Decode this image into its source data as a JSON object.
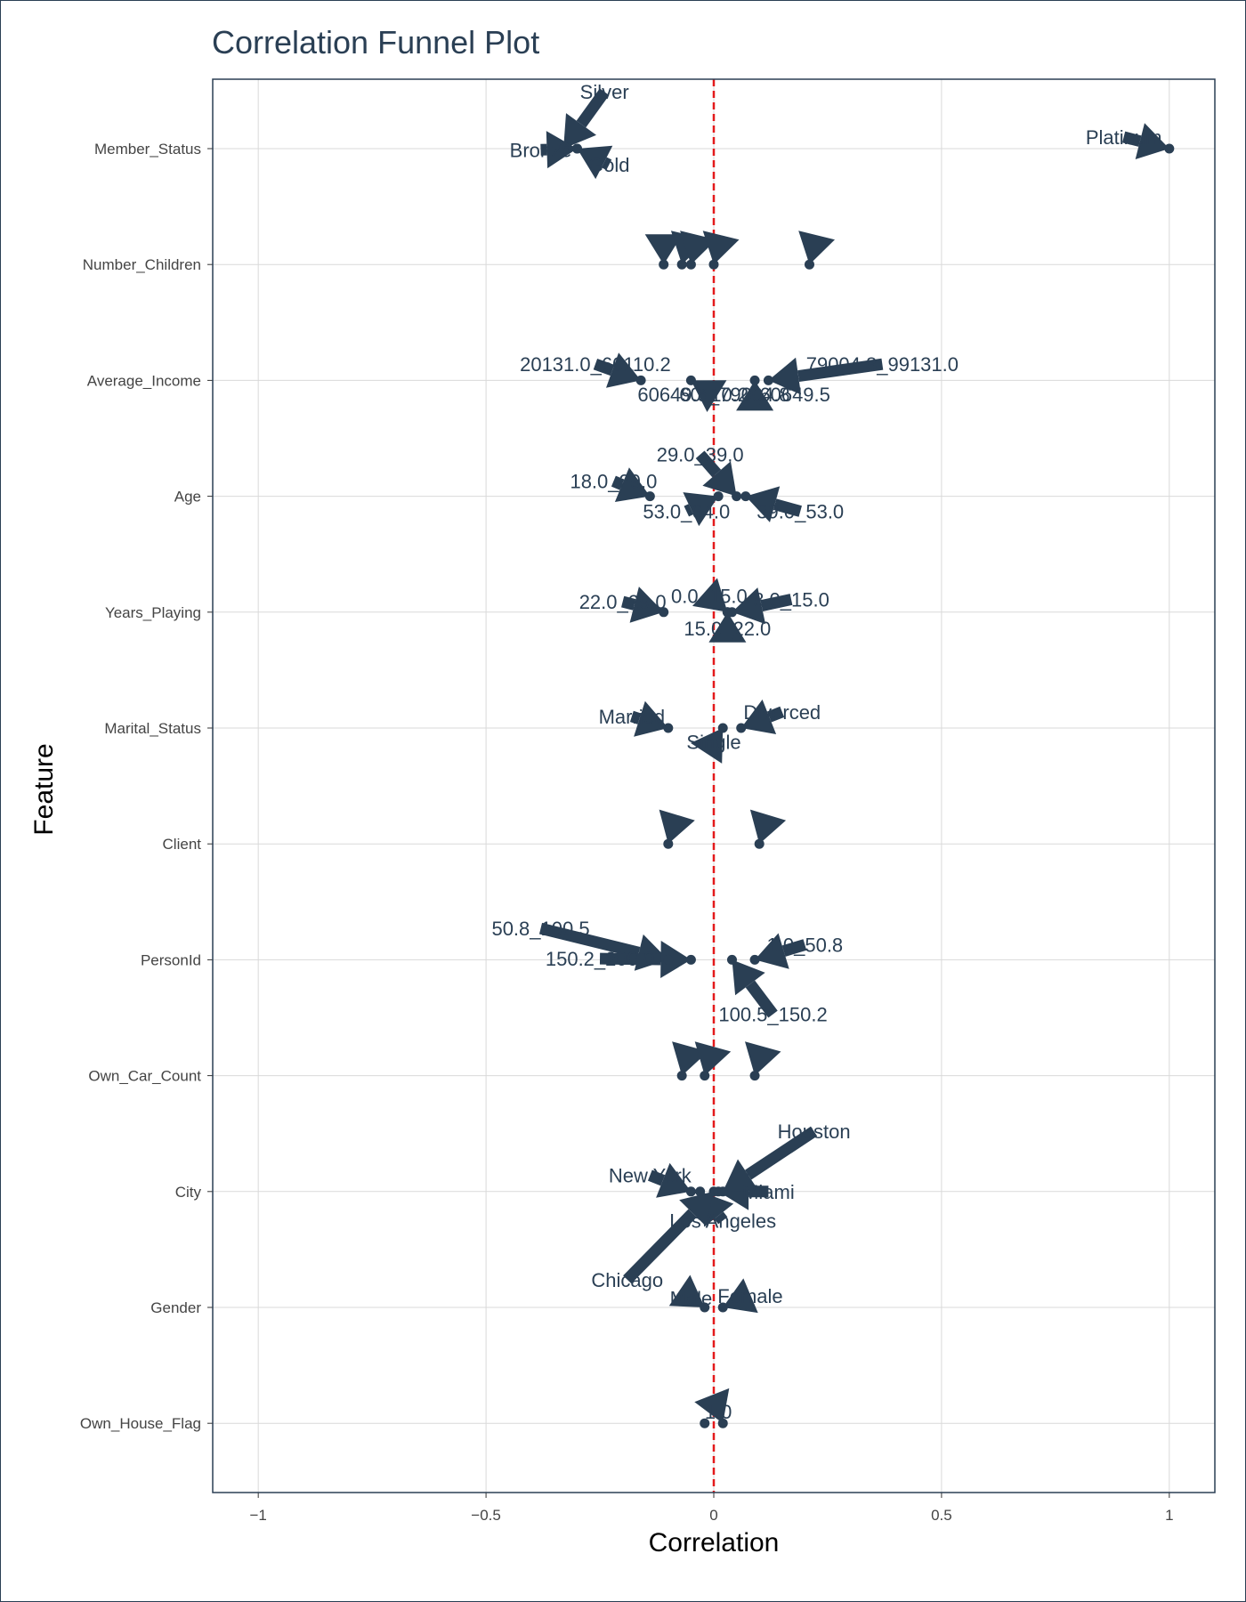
{
  "chart_data": {
    "type": "scatter",
    "title": "Correlation Funnel Plot",
    "xlabel": "Correlation",
    "ylabel": "Feature",
    "xlim": [
      -1.1,
      1.1
    ],
    "x_ticks": [
      -1,
      -0.5,
      0,
      0.5,
      1
    ],
    "x_tick_labels": [
      "−1",
      "−0.5",
      "0",
      "0.5",
      "1"
    ],
    "reference_line": {
      "x": 0,
      "style": "dashed",
      "color": "#e31a1c"
    },
    "grid": true,
    "legend": "none",
    "categories": [
      "Member_Status",
      "Number_Children",
      "Average_Income",
      "Age",
      "Years_Playing",
      "Marital_Status",
      "Client",
      "PersonId",
      "Own_Car_Count",
      "City",
      "Gender",
      "Own_House_Flag"
    ],
    "points": [
      {
        "feature": "Member_Status",
        "label": "Silver",
        "x": -0.33
      },
      {
        "feature": "Member_Status",
        "label": "Bronze",
        "x": -0.3
      },
      {
        "feature": "Member_Status",
        "label": "Gold",
        "x": -0.3
      },
      {
        "feature": "Member_Status",
        "label": "Platinum",
        "x": 1.0
      },
      {
        "feature": "Number_Children",
        "label": "",
        "x": -0.11
      },
      {
        "feature": "Number_Children",
        "label": "",
        "x": -0.07
      },
      {
        "feature": "Number_Children",
        "label": "",
        "x": -0.05
      },
      {
        "feature": "Number_Children",
        "label": "",
        "x": 0.0
      },
      {
        "feature": "Number_Children",
        "label": "",
        "x": 0.21
      },
      {
        "feature": "Average_Income",
        "label": "20131.0_60110.2",
        "x": -0.16
      },
      {
        "feature": "Average_Income",
        "label": "60649.5_79004.8",
        "x": -0.05
      },
      {
        "feature": "Average_Income",
        "label": "60110.2_60649.5",
        "x": 0.09
      },
      {
        "feature": "Average_Income",
        "label": "79004.8_99131.0",
        "x": 0.12
      },
      {
        "feature": "Age",
        "label": "18.0_29.0",
        "x": -0.14
      },
      {
        "feature": "Age",
        "label": "53.0_64.0",
        "x": 0.01
      },
      {
        "feature": "Age",
        "label": "29.0_39.0",
        "x": 0.05
      },
      {
        "feature": "Age",
        "label": "39.0_53.0",
        "x": 0.07
      },
      {
        "feature": "Years_Playing",
        "label": "22.0_29.0",
        "x": -0.11
      },
      {
        "feature": "Years_Playing",
        "label": "0.0_15.0",
        "x": 0.03
      },
      {
        "feature": "Years_Playing",
        "label": "15.0_22.0",
        "x": 0.03
      },
      {
        "feature": "Years_Playing",
        "label": "8.0_15.0",
        "x": 0.04
      },
      {
        "feature": "Marital_Status",
        "label": "Married",
        "x": -0.1
      },
      {
        "feature": "Marital_Status",
        "label": "Single",
        "x": 0.02
      },
      {
        "feature": "Marital_Status",
        "label": "Divorced",
        "x": 0.06
      },
      {
        "feature": "Client",
        "label": "",
        "x": -0.1
      },
      {
        "feature": "Client",
        "label": "",
        "x": 0.1
      },
      {
        "feature": "PersonId",
        "label": "50.8_100.5",
        "x": -0.1
      },
      {
        "feature": "PersonId",
        "label": "150.2_200.0",
        "x": -0.05
      },
      {
        "feature": "PersonId",
        "label": "100.5_150.2",
        "x": 0.04
      },
      {
        "feature": "PersonId",
        "label": "1.0_50.8",
        "x": 0.09
      },
      {
        "feature": "Own_Car_Count",
        "label": "",
        "x": -0.07
      },
      {
        "feature": "Own_Car_Count",
        "label": "",
        "x": -0.02
      },
      {
        "feature": "Own_Car_Count",
        "label": "",
        "x": 0.09
      },
      {
        "feature": "City",
        "label": "New York",
        "x": -0.05
      },
      {
        "feature": "City",
        "label": "Los Angeles",
        "x": -0.03
      },
      {
        "feature": "City",
        "label": "Chicago",
        "x": 0.0
      },
      {
        "feature": "City",
        "label": "Miami",
        "x": 0.01
      },
      {
        "feature": "City",
        "label": "Houston",
        "x": 0.02
      },
      {
        "feature": "Gender",
        "label": "Male",
        "x": -0.02
      },
      {
        "feature": "Gender",
        "label": "Female",
        "x": 0.02
      },
      {
        "feature": "Own_House_Flag",
        "label": "",
        "x": -0.02
      },
      {
        "feature": "Own_House_Flag",
        "label": "1.0",
        "x": 0.02
      }
    ],
    "annotations": [
      {
        "text": "Silver",
        "point": 0,
        "tx": -0.24,
        "ty": -0.49
      },
      {
        "text": "Bronze",
        "point": 1,
        "tx": -0.38,
        "ty": 0.01
      },
      {
        "text": "Gold",
        "point": 2,
        "tx": -0.23,
        "ty": 0.14
      },
      {
        "text": "Platinum",
        "point": 3,
        "tx": 0.9,
        "ty": -0.1
      },
      {
        "text": "",
        "point": 4,
        "tx": -0.11,
        "ty": -0.16
      },
      {
        "text": "",
        "point": 5,
        "tx": -0.06,
        "ty": -0.16
      },
      {
        "text": "",
        "point": 6,
        "tx": -0.04,
        "ty": -0.16
      },
      {
        "text": "",
        "point": 7,
        "tx": 0.01,
        "ty": -0.16
      },
      {
        "text": "",
        "point": 8,
        "tx": 0.22,
        "ty": -0.16
      },
      {
        "text": "20131.0_60110.2",
        "point": 9,
        "tx": -0.26,
        "ty": -0.14
      },
      {
        "text": "60649.5_79004.8",
        "point": 10,
        "tx": 0.0,
        "ty": 0.12
      },
      {
        "text": "60110.2_60649.5",
        "point": 11,
        "tx": 0.09,
        "ty": 0.12
      },
      {
        "text": "79004.8_99131.0",
        "point": 12,
        "tx": 0.37,
        "ty": -0.14
      },
      {
        "text": "18.0_29.0",
        "point": 13,
        "tx": -0.22,
        "ty": -0.13
      },
      {
        "text": "53.0_64.0",
        "point": 14,
        "tx": -0.06,
        "ty": 0.13
      },
      {
        "text": "29.0_39.0",
        "point": 15,
        "tx": -0.03,
        "ty": -0.36
      },
      {
        "text": "39.0_53.0",
        "point": 16,
        "tx": 0.19,
        "ty": 0.13
      },
      {
        "text": "22.0_29.0",
        "point": 17,
        "tx": -0.2,
        "ty": -0.09
      },
      {
        "text": "0.0_15.0",
        "point": 18,
        "tx": -0.01,
        "ty": -0.14
      },
      {
        "text": "15.0_22.0",
        "point": 19,
        "tx": 0.03,
        "ty": 0.14
      },
      {
        "text": "8.0_15.0",
        "point": 20,
        "tx": 0.17,
        "ty": -0.11
      },
      {
        "text": "Married",
        "point": 21,
        "tx": -0.18,
        "ty": -0.1
      },
      {
        "text": "Single",
        "point": 22,
        "tx": 0.0,
        "ty": 0.12
      },
      {
        "text": "Divorced",
        "point": 23,
        "tx": 0.15,
        "ty": -0.14
      },
      {
        "text": "",
        "point": 24,
        "tx": -0.09,
        "ty": -0.13
      },
      {
        "text": "",
        "point": 25,
        "tx": 0.11,
        "ty": -0.13
      },
      {
        "text": "50.8_100.5",
        "point": 26,
        "tx": -0.38,
        "ty": -0.27
      },
      {
        "text": "150.2_200.0",
        "point": 27,
        "tx": -0.25,
        "ty": -0.01
      },
      {
        "text": "100.5_150.2",
        "point": 28,
        "tx": 0.13,
        "ty": 0.47
      },
      {
        "text": "1.0_50.8",
        "point": 29,
        "tx": 0.2,
        "ty": -0.13
      },
      {
        "text": "",
        "point": 30,
        "tx": -0.06,
        "ty": -0.14
      },
      {
        "text": "",
        "point": 31,
        "tx": -0.01,
        "ty": -0.14
      },
      {
        "text": "",
        "point": 32,
        "tx": 0.1,
        "ty": -0.14
      },
      {
        "text": "New York",
        "point": 33,
        "tx": -0.14,
        "ty": -0.14
      },
      {
        "text": "Los Angeles",
        "point": 34,
        "tx": 0.02,
        "ty": 0.25
      },
      {
        "text": "Chicago",
        "point": 35,
        "tx": -0.19,
        "ty": 0.76
      },
      {
        "text": "Miami",
        "point": 36,
        "tx": 0.12,
        "ty": 0.0
      },
      {
        "text": "Houston",
        "point": 37,
        "tx": 0.22,
        "ty": -0.52
      },
      {
        "text": "Male",
        "point": 38,
        "tx": -0.05,
        "ty": -0.08
      },
      {
        "text": "Female",
        "point": 39,
        "tx": 0.08,
        "ty": -0.1
      },
      {
        "text": "",
        "point": 40,
        "tx": -0.02,
        "ty": 0.0
      },
      {
        "text": "1.0",
        "point": 41,
        "tx": 0.01,
        "ty": -0.1
      }
    ],
    "colors": {
      "marker": "#2a3f54",
      "reference_line": "#e31a1c",
      "text": "#2a3f54",
      "grid": "#d9d9d9"
    }
  }
}
